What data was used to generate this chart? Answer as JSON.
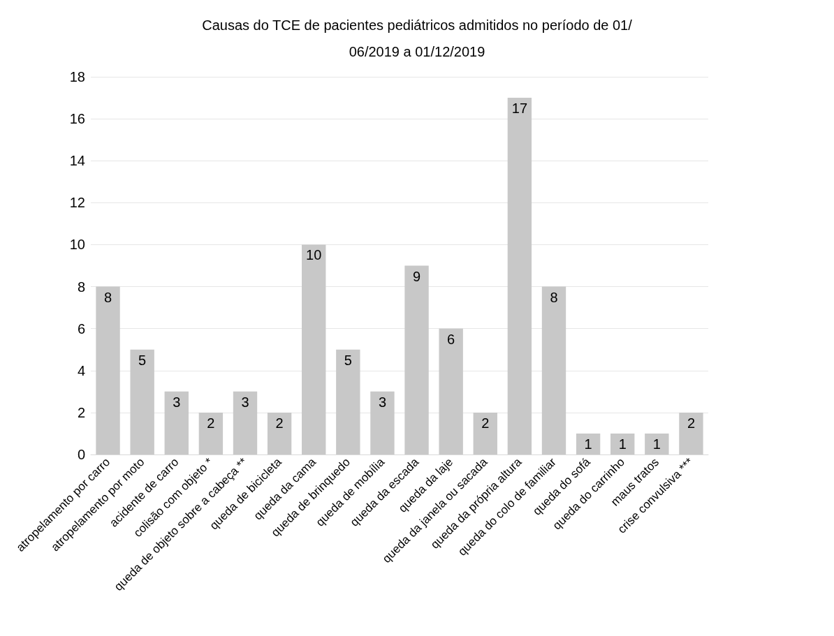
{
  "chart_data": {
    "type": "bar",
    "title": "Causas do TCE de pacientes pediátricos admitidos no período de 01/06/2019 a 01/12/2019",
    "categories": [
      "atropelamento por carro",
      "atropelamento por moto",
      "acidente de carro",
      "colisão com objeto *",
      "queda de objeto sobre a cabeça **",
      "queda de bicicleta",
      "queda da cama",
      "queda de brinquedo",
      "queda de mobília",
      "queda da escada",
      "queda da laje",
      "queda da janela ou sacada",
      "queda da própria altura",
      "queda do colo de familiar",
      "queda do sofá",
      "queda do carrinho",
      "maus tratos",
      "crise convulsiva ***"
    ],
    "values": [
      8,
      5,
      3,
      2,
      3,
      2,
      10,
      5,
      3,
      9,
      6,
      2,
      17,
      8,
      1,
      1,
      1,
      2
    ],
    "color": "#c8c8c8",
    "ylim": [
      0,
      18
    ],
    "yticks": [
      0,
      2,
      4,
      6,
      8,
      10,
      12,
      14,
      16,
      18
    ],
    "grid": "y",
    "data_labels": true
  }
}
